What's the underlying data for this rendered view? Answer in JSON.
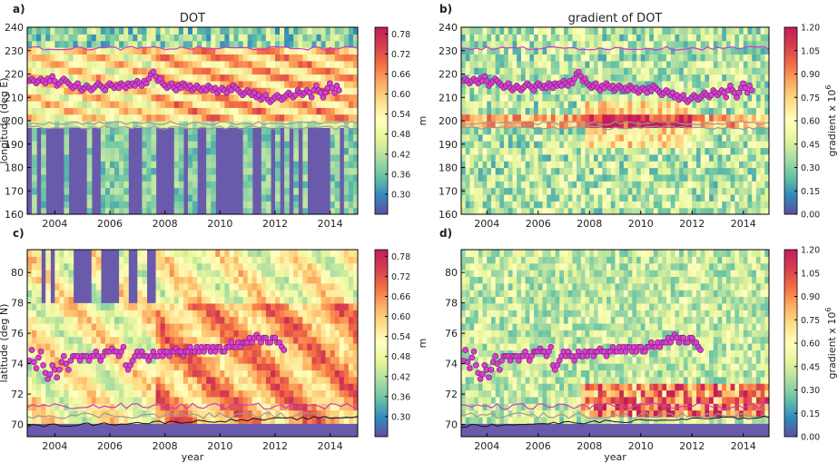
{
  "figure": {
    "colors": {
      "colormap": [
        "#5e4fa2",
        "#3288bd",
        "#66c2a5",
        "#abdda4",
        "#e6f598",
        "#ffffbf",
        "#fee08b",
        "#fdae61",
        "#f46d43",
        "#d53e4f",
        "#c51b5b"
      ],
      "contour_magenta": "#c83cc8",
      "contour_grey": "#9a9a9a",
      "contour_black": "#111111",
      "marker_fill": "#d83fd0",
      "marker_edge": "#7a1d7a",
      "masked_fill": "#6a5aab"
    }
  },
  "chart_data": [
    {
      "panel": "a)",
      "type": "heatmap",
      "title": "DOT",
      "xlabel": "",
      "ylabel": "longitude (deg E)",
      "xlim": [
        2003,
        2015
      ],
      "ylim": [
        160,
        240
      ],
      "xticks": [
        "2004",
        "2006",
        "2008",
        "2010",
        "2012",
        "2014"
      ],
      "yticks": [
        "160",
        "170",
        "180",
        "190",
        "200",
        "210",
        "220",
        "230",
        "240"
      ],
      "colorbar": {
        "label": "m",
        "range": [
          0.24,
          0.8
        ],
        "ticks": [
          "0.30",
          "0.36",
          "0.42",
          "0.48",
          "0.54",
          "0.60",
          "0.66",
          "0.72",
          "0.78"
        ]
      },
      "markers": {
        "start_year": 2003.08,
        "step_years": 0.0833,
        "values": [
          217,
          218,
          217,
          216,
          217,
          218,
          217,
          216,
          218,
          217,
          219,
          217,
          215,
          216,
          217,
          218,
          217,
          216,
          215,
          214,
          215,
          216,
          214,
          213,
          214,
          215,
          214,
          213,
          214,
          215,
          216,
          215,
          214,
          213,
          215,
          216,
          215,
          214,
          215,
          214,
          216,
          215,
          214,
          216,
          215,
          216,
          215,
          217,
          216,
          215,
          217,
          216,
          218,
          220,
          221,
          219,
          217,
          218,
          216,
          215,
          214,
          215,
          216,
          214,
          213,
          215,
          214,
          216,
          215,
          214,
          215,
          213,
          214,
          215,
          214,
          213,
          214,
          213,
          215,
          214,
          213,
          214,
          212,
          213,
          214,
          213,
          212,
          214,
          213,
          215,
          214,
          213,
          212,
          211,
          212,
          213,
          212,
          211,
          212,
          210,
          211,
          209,
          210,
          211,
          209,
          208,
          209,
          210,
          211,
          210,
          209,
          210,
          211,
          212,
          211,
          210,
          211,
          213,
          212,
          211,
          212,
          213,
          212,
          210,
          213,
          215,
          213,
          212,
          210,
          212,
          214,
          216,
          214,
          212,
          215,
          213
        ]
      }
    },
    {
      "panel": "b)",
      "type": "heatmap",
      "title": "gradient of DOT",
      "xlabel": "",
      "ylabel": "",
      "xlim": [
        2003,
        2015
      ],
      "ylim": [
        160,
        240
      ],
      "xticks": [
        "2004",
        "2006",
        "2008",
        "2010",
        "2012",
        "2014"
      ],
      "yticks": [
        "160",
        "170",
        "180",
        "190",
        "200",
        "210",
        "220",
        "230",
        "240"
      ],
      "colorbar": {
        "label": "gradient x 10",
        "label_exp": "6",
        "range": [
          0.0,
          1.2
        ],
        "ticks": [
          "0.00",
          "0.15",
          "0.30",
          "0.45",
          "0.60",
          "0.75",
          "0.90",
          "1.05",
          "1.20"
        ]
      },
      "markers": {
        "start_year": 2003.08,
        "step_years": 0.0833,
        "values": [
          217,
          218,
          217,
          216,
          217,
          218,
          217,
          216,
          218,
          217,
          219,
          217,
          215,
          216,
          217,
          218,
          217,
          216,
          215,
          214,
          215,
          216,
          214,
          213,
          214,
          215,
          214,
          213,
          214,
          215,
          216,
          215,
          214,
          213,
          215,
          216,
          215,
          214,
          215,
          214,
          216,
          215,
          214,
          216,
          215,
          216,
          215,
          217,
          216,
          215,
          217,
          216,
          218,
          220,
          221,
          219,
          217,
          218,
          216,
          215,
          214,
          215,
          216,
          214,
          213,
          215,
          214,
          216,
          215,
          214,
          215,
          213,
          214,
          215,
          214,
          213,
          214,
          213,
          215,
          214,
          213,
          214,
          212,
          213,
          214,
          213,
          212,
          214,
          213,
          215,
          214,
          213,
          212,
          211,
          212,
          213,
          212,
          211,
          212,
          210,
          211,
          209,
          210,
          211,
          209,
          208,
          209,
          210,
          211,
          210,
          209,
          210,
          211,
          212,
          211,
          210,
          211,
          213,
          212,
          211,
          212,
          213,
          212,
          210,
          213,
          215,
          213,
          212,
          210,
          212,
          214,
          216,
          214,
          212,
          215,
          213
        ]
      }
    },
    {
      "panel": "c)",
      "type": "heatmap",
      "title": "",
      "xlabel": "year",
      "ylabel": "latitude (deg N)",
      "xlim": [
        2003,
        2015
      ],
      "ylim": [
        69.2,
        81.5
      ],
      "xticks": [
        "2004",
        "2006",
        "2008",
        "2010",
        "2012",
        "2014"
      ],
      "yticks": [
        "70",
        "72",
        "74",
        "76",
        "78",
        "80"
      ],
      "colorbar": {
        "label": "m",
        "range": [
          0.24,
          0.8
        ],
        "ticks": [
          "0.30",
          "0.36",
          "0.42",
          "0.48",
          "0.54",
          "0.60",
          "0.66",
          "0.72",
          "0.78"
        ]
      },
      "markers": {
        "start_year": 2003.08,
        "step_years": 0.0833,
        "values": [
          74.2,
          74.9,
          74.1,
          73.7,
          74.4,
          74.8,
          73.9,
          73.4,
          73.0,
          73.3,
          73.9,
          73.6,
          73.1,
          73.6,
          74.1,
          74.5,
          74.0,
          73.6,
          74.2,
          74.5,
          74.5,
          74.5,
          74.2,
          74.5,
          74.5,
          74.5,
          74.2,
          74.5,
          74.5,
          74.8,
          74.5,
          74.2,
          74.5,
          74.8,
          74.8,
          74.8,
          75.0,
          74.8,
          74.8,
          74.5,
          74.8,
          75.1,
          73.9,
          73.6,
          73.9,
          74.2,
          74.5,
          74.8,
          74.5,
          74.8,
          74.5,
          74.5,
          74.2,
          74.5,
          74.8,
          74.5,
          74.5,
          74.8,
          74.5,
          74.8,
          74.8,
          74.5,
          74.8,
          74.8,
          75.0,
          74.8,
          74.8,
          74.5,
          74.8,
          74.8,
          75.1,
          74.8,
          74.8,
          75.1,
          74.8,
          75.1,
          74.8,
          75.1,
          75.1,
          74.8,
          75.1,
          74.8,
          75.1,
          75.1,
          74.8,
          74.8,
          75.1,
          75.1,
          75.4,
          75.1,
          75.1,
          75.4,
          75.1,
          75.4,
          75.4,
          75.4,
          75.7,
          75.4,
          75.7,
          75.9,
          75.7,
          75.4,
          75.7,
          75.7,
          75.4,
          75.4,
          75.7,
          75.7,
          75.4,
          75.4,
          75.1,
          74.9
        ]
      }
    },
    {
      "panel": "d)",
      "type": "heatmap",
      "title": "",
      "xlabel": "year",
      "ylabel": "",
      "xlim": [
        2003,
        2015
      ],
      "ylim": [
        69.2,
        81.5
      ],
      "xticks": [
        "2004",
        "2006",
        "2008",
        "2010",
        "2012",
        "2014"
      ],
      "yticks": [
        "70",
        "72",
        "74",
        "76",
        "78",
        "80"
      ],
      "colorbar": {
        "label": "gradient x 10",
        "label_exp": "6",
        "range": [
          0.0,
          1.2
        ],
        "ticks": [
          "0.00",
          "0.15",
          "0.30",
          "0.45",
          "0.60",
          "0.75",
          "0.90",
          "1.05",
          "1.20"
        ]
      },
      "markers": {
        "start_year": 2003.08,
        "step_years": 0.0833,
        "values": [
          74.2,
          74.9,
          74.1,
          73.7,
          74.4,
          74.8,
          73.9,
          73.4,
          73.0,
          73.3,
          73.9,
          73.6,
          73.1,
          73.6,
          74.1,
          74.5,
          74.0,
          73.6,
          74.2,
          74.5,
          74.5,
          74.5,
          74.2,
          74.5,
          74.5,
          74.5,
          74.2,
          74.5,
          74.5,
          74.8,
          74.5,
          74.2,
          74.5,
          74.8,
          74.8,
          74.8,
          75.0,
          74.8,
          74.8,
          74.5,
          74.8,
          75.1,
          73.9,
          73.6,
          73.9,
          74.2,
          74.5,
          74.8,
          74.5,
          74.8,
          74.5,
          74.5,
          74.2,
          74.5,
          74.8,
          74.5,
          74.5,
          74.8,
          74.5,
          74.8,
          74.8,
          74.5,
          74.8,
          74.8,
          75.0,
          74.8,
          74.8,
          74.5,
          74.8,
          74.8,
          75.1,
          74.8,
          74.8,
          75.1,
          74.8,
          75.1,
          74.8,
          75.1,
          75.1,
          74.8,
          75.1,
          74.8,
          75.1,
          75.1,
          74.8,
          74.8,
          75.1,
          75.1,
          75.4,
          75.1,
          75.1,
          75.4,
          75.1,
          75.4,
          75.4,
          75.4,
          75.7,
          75.4,
          75.7,
          75.9,
          75.7,
          75.4,
          75.7,
          75.7,
          75.4,
          75.4,
          75.7,
          75.7,
          75.4,
          75.4,
          75.1,
          74.9
        ]
      }
    }
  ]
}
